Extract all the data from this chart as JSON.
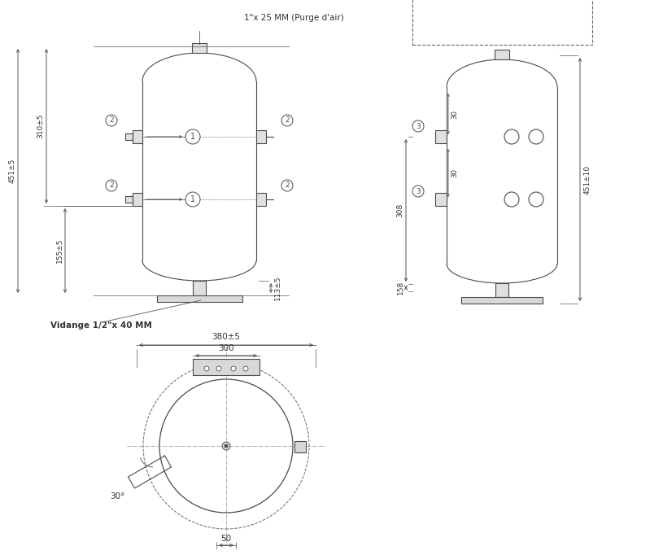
{
  "bg_color": "#ffffff",
  "line_color": "#4a4a4a",
  "dim_color": "#555555",
  "text_color": "#333333",
  "fig_width": 8.15,
  "fig_height": 6.82
}
